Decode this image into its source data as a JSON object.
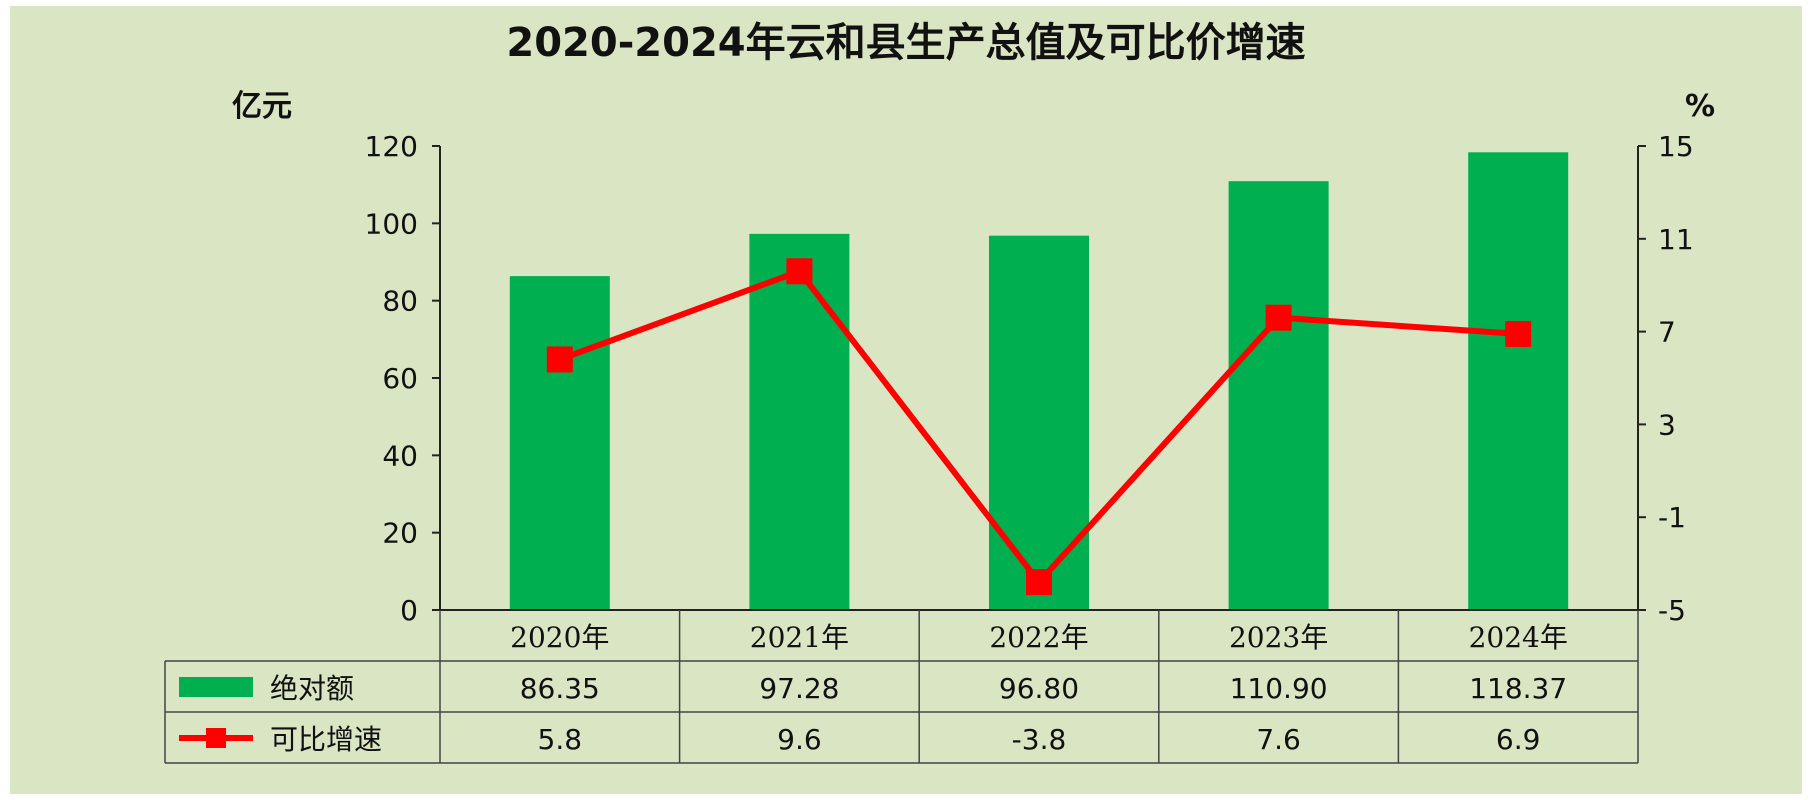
{
  "chart_data": {
    "type": "bar",
    "title": "2020-2024年云和县生产总值及可比价增速",
    "ylabel": "亿元",
    "y2label": "%",
    "categories": [
      "2020年",
      "2021年",
      "2022年",
      "2023年",
      "2024年"
    ],
    "ylim": [
      0,
      120
    ],
    "yticks": [
      0,
      20,
      40,
      60,
      80,
      100,
      120
    ],
    "y2lim": [
      -5,
      15
    ],
    "y2ticks": [
      -5,
      -1,
      3,
      7,
      11,
      15
    ],
    "series": [
      {
        "name": "绝对额",
        "type": "bar",
        "axis": "left",
        "color": "#00b050",
        "values": [
          86.35,
          97.28,
          96.8,
          110.9,
          118.37
        ],
        "labels": [
          "86.35",
          "97.28",
          "96.80",
          "110.90",
          "118.37"
        ]
      },
      {
        "name": "可比增速",
        "type": "line",
        "axis": "right",
        "color": "#ff0000",
        "marker": "square",
        "values": [
          5.8,
          9.6,
          -3.8,
          7.6,
          6.9
        ],
        "labels": [
          "5.8",
          "9.6",
          "-3.8",
          "7.6",
          "6.9"
        ]
      }
    ],
    "legend": "data-table-below"
  }
}
